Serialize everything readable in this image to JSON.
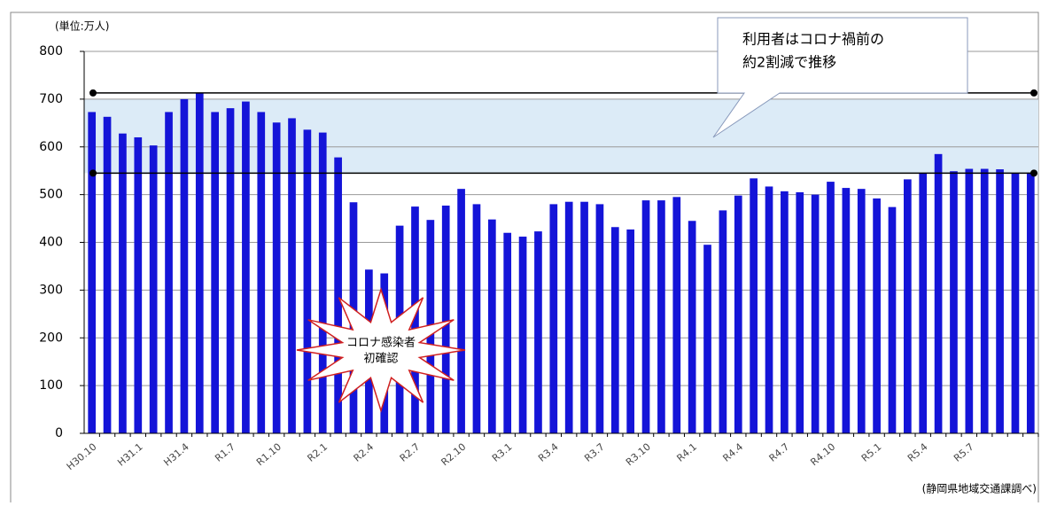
{
  "chart_data": {
    "type": "bar",
    "unit_label": "(単位:万人)",
    "source": "(静岡県地域交通課調べ)",
    "callout": [
      "利用者はコロナ禍前の",
      "約2割減で推移"
    ],
    "burst": [
      "コロナ感染者",
      "初確認"
    ],
    "categories": [
      "H30.10",
      null,
      null,
      "H31.1",
      null,
      null,
      "H31.4",
      null,
      null,
      "R1.7",
      null,
      null,
      "R1.10",
      null,
      null,
      "R2.1",
      null,
      null,
      "R2.4",
      null,
      null,
      "R2.7",
      null,
      null,
      "R2.10",
      null,
      null,
      "R3.1",
      null,
      null,
      "R3.4",
      null,
      null,
      "R3.7",
      null,
      null,
      "R3.10",
      null,
      null,
      "R4.1",
      null,
      null,
      "R4.4",
      null,
      null,
      "R4.7",
      null,
      null,
      "R4.10",
      null,
      null,
      "R5.1",
      null,
      null,
      "R5.4",
      null,
      null,
      "R5.7",
      null,
      null,
      null,
      null
    ],
    "values": [
      673,
      663,
      628,
      620,
      603,
      673,
      700,
      713,
      673,
      681,
      695,
      673,
      651,
      660,
      636,
      630,
      578,
      484,
      343,
      335,
      435,
      475,
      447,
      477,
      512,
      480,
      448,
      420,
      412,
      423,
      480,
      485,
      485,
      480,
      432,
      427,
      488,
      488,
      495,
      445,
      395,
      467,
      498,
      534,
      517,
      507,
      505,
      500,
      527,
      514,
      512,
      492,
      474,
      532,
      545,
      585,
      549,
      554,
      554,
      553,
      545,
      546
    ],
    "color": "#1414d8",
    "ylim": [
      0,
      800
    ],
    "yticks": [
      0,
      100,
      200,
      300,
      400,
      500,
      600,
      700,
      800
    ],
    "grid": true,
    "reference_lines": [
      713,
      545
    ],
    "band": [
      545,
      700
    ]
  }
}
